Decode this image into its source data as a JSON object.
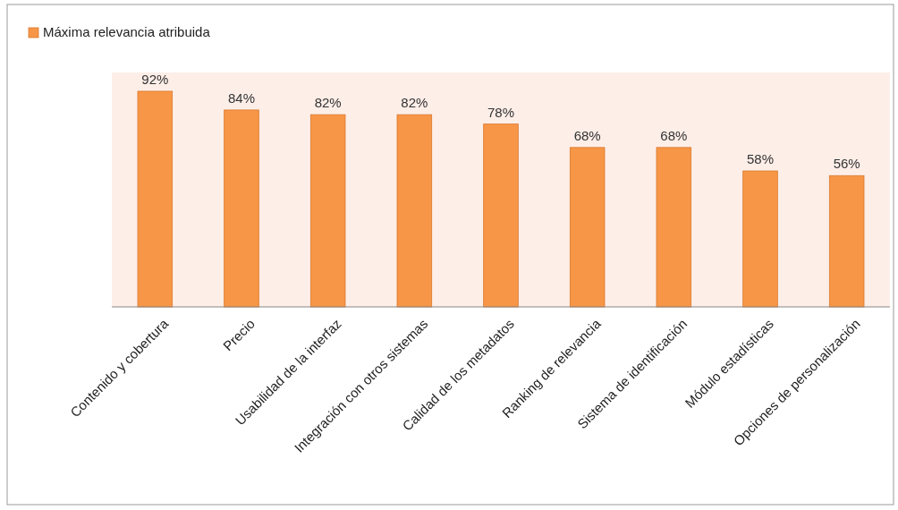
{
  "chart_data": {
    "type": "bar",
    "categories": [
      "Contenido y cobertura",
      "Precio",
      "Usabilidad de la interfaz",
      "Integración con otros sistemas",
      "Calidad de los metadatos",
      "Ranking de relevancia",
      "Sistema de identificación",
      "Módulo estadísticas",
      "Opciones de personalización"
    ],
    "series": [
      {
        "name": "Máxima relevancia atribuida",
        "color": "#f79646",
        "values": [
          92,
          84,
          82,
          82,
          78,
          68,
          68,
          58,
          56
        ],
        "value_labels": [
          "92%",
          "84%",
          "82%",
          "82%",
          "78%",
          "68%",
          "68%",
          "58%",
          "56%"
        ]
      }
    ],
    "ylim": [
      0,
      100
    ],
    "legend": "top left",
    "grid": false,
    "tick_labels": "x"
  }
}
